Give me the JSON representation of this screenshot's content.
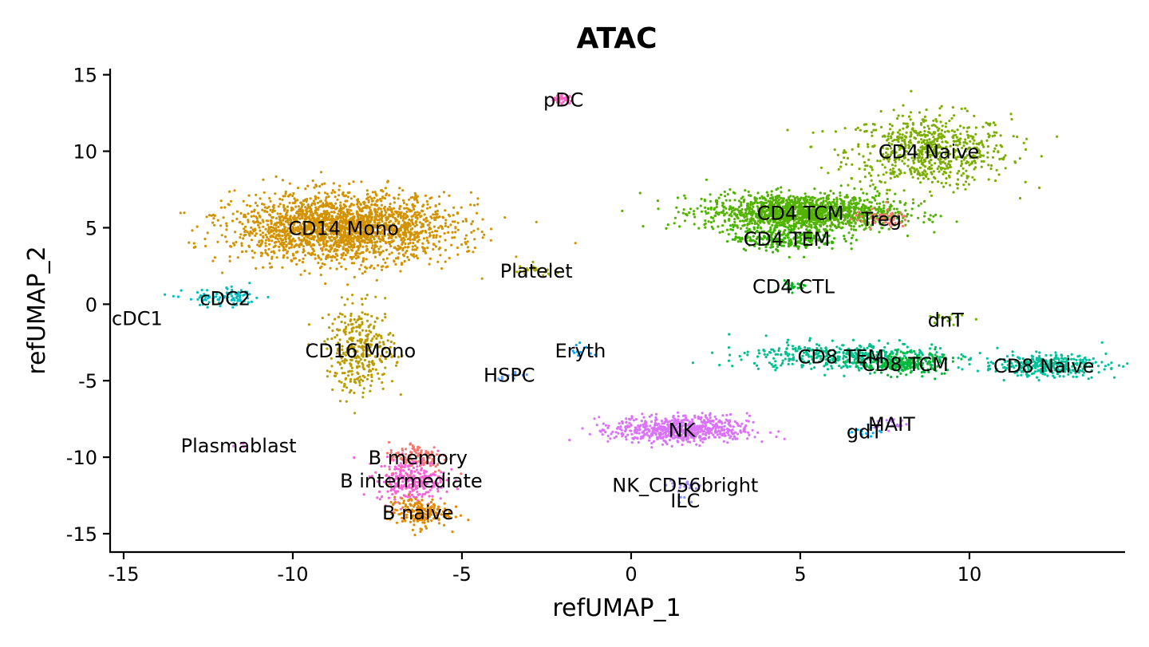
{
  "chart_data": {
    "type": "scatter",
    "title": "ATAC",
    "xlabel": "refUMAP_1",
    "ylabel": "refUMAP_2",
    "xlim": [
      -15.4,
      14.6
    ],
    "ylim": [
      -16.2,
      15.4
    ],
    "xticks": [
      {
        "value": -15,
        "label": "-15"
      },
      {
        "value": -10,
        "label": "-10"
      },
      {
        "value": -5,
        "label": "-5"
      },
      {
        "value": 0,
        "label": "0"
      },
      {
        "value": 5,
        "label": "5"
      },
      {
        "value": 10,
        "label": "10"
      }
    ],
    "yticks": [
      {
        "value": 15,
        "label": "15"
      },
      {
        "value": 10,
        "label": "10"
      },
      {
        "value": 5,
        "label": "5"
      },
      {
        "value": 0,
        "label": "0"
      },
      {
        "value": -5,
        "label": "-5"
      },
      {
        "value": -10,
        "label": "-10"
      },
      {
        "value": -15,
        "label": "-15"
      }
    ],
    "grid": false,
    "legend": "none",
    "clusters": [
      {
        "label": "pDC",
        "x": -2.0,
        "y": 13.4,
        "color": "#FF61C3",
        "approx_cells": 40
      },
      {
        "label": "CD4 Naive",
        "x": 8.8,
        "y": 10.0,
        "color": "#7CAE00",
        "approx_cells": 700
      },
      {
        "label": "CD4 TCM",
        "x": 5.0,
        "y": 6.0,
        "color": "#53B400",
        "approx_cells": 1500
      },
      {
        "label": "Treg",
        "x": 7.4,
        "y": 5.6,
        "color": "#F8766D",
        "approx_cells": 60
      },
      {
        "label": "CD4 TEM",
        "x": 4.6,
        "y": 4.3,
        "color": "#39B600",
        "approx_cells": 250
      },
      {
        "label": "CD14 Mono",
        "x": -8.5,
        "y": 5.0,
        "color": "#D39200",
        "approx_cells": 2200
      },
      {
        "label": "Platelet",
        "x": -2.8,
        "y": 2.2,
        "color": "#A3A500",
        "approx_cells": 25
      },
      {
        "label": "cDC2",
        "x": -12.0,
        "y": 0.4,
        "color": "#00BFC4",
        "approx_cells": 90
      },
      {
        "label": "cDC1",
        "x": -14.6,
        "y": -0.9,
        "color": "#00B9E3",
        "approx_cells": 0
      },
      {
        "label": "CD4 CTL",
        "x": 4.8,
        "y": 1.2,
        "color": "#00B81F",
        "approx_cells": 25
      },
      {
        "label": "dnT",
        "x": 9.3,
        "y": -1.0,
        "color": "#6BB100",
        "approx_cells": 20
      },
      {
        "label": "CD16 Mono",
        "x": -8.0,
        "y": -3.0,
        "color": "#BB9D00",
        "approx_cells": 350
      },
      {
        "label": "Eryth",
        "x": -1.5,
        "y": -3.0,
        "color": "#00A9FF",
        "approx_cells": 12
      },
      {
        "label": "HSPC",
        "x": -3.6,
        "y": -4.6,
        "color": "#619CFF",
        "approx_cells": 10
      },
      {
        "label": "CD8 TEM",
        "x": 6.2,
        "y": -3.4,
        "color": "#00C08B",
        "approx_cells": 400
      },
      {
        "label": "CD8 TCM",
        "x": 8.1,
        "y": -3.9,
        "color": "#00BA38",
        "approx_cells": 220
      },
      {
        "label": "CD8 Naive",
        "x": 12.2,
        "y": -4.0,
        "color": "#00C19A",
        "approx_cells": 320
      },
      {
        "label": "NK",
        "x": 1.5,
        "y": -8.2,
        "color": "#DB72FB",
        "approx_cells": 650
      },
      {
        "label": "MAIT",
        "x": 7.7,
        "y": -7.8,
        "color": "#C77CFF",
        "approx_cells": 20
      },
      {
        "label": "gdT",
        "x": 6.9,
        "y": -8.3,
        "color": "#00B0F6",
        "approx_cells": 15
      },
      {
        "label": "Plasmablast",
        "x": -11.6,
        "y": -9.2,
        "color": "#F564E3",
        "approx_cells": 4
      },
      {
        "label": "B memory",
        "x": -6.3,
        "y": -10.0,
        "color": "#F8766D",
        "approx_cells": 120
      },
      {
        "label": "B intermediate",
        "x": -6.5,
        "y": -11.5,
        "color": "#FB61D7",
        "approx_cells": 260
      },
      {
        "label": "B naive",
        "x": -6.3,
        "y": -13.6,
        "color": "#E38900",
        "approx_cells": 180
      },
      {
        "label": "NK_CD56bright",
        "x": 1.6,
        "y": -11.8,
        "color": "#A58AFF",
        "approx_cells": 20
      },
      {
        "label": "ILC",
        "x": 1.6,
        "y": -12.8,
        "color": "#8494FF",
        "approx_cells": 4
      }
    ]
  }
}
